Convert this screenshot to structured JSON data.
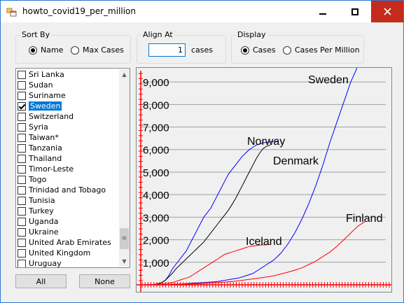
{
  "window": {
    "title": "howto_covid19_per_million",
    "icons": {
      "app": "app-icon",
      "minimize": "minimize-icon",
      "maximize": "maximize-icon",
      "close": "close-icon"
    }
  },
  "sort_by": {
    "label": "Sort By",
    "options": [
      {
        "label": "Name",
        "selected": true
      },
      {
        "label": "Max Cases",
        "selected": false
      }
    ]
  },
  "align_at": {
    "label": "Align At",
    "value": "1",
    "unit_label": "cases"
  },
  "display": {
    "label": "Display",
    "options": [
      {
        "label": "Cases",
        "selected": true
      },
      {
        "label": "Cases Per Million",
        "selected": false
      }
    ]
  },
  "countries": [
    {
      "label": "Sri Lanka",
      "checked": false
    },
    {
      "label": "Sudan",
      "checked": false
    },
    {
      "label": "Suriname",
      "checked": false
    },
    {
      "label": "Sweden",
      "checked": true,
      "selected": true
    },
    {
      "label": "Switzerland",
      "checked": false
    },
    {
      "label": "Syria",
      "checked": false
    },
    {
      "label": "Taiwan*",
      "checked": false
    },
    {
      "label": "Tanzania",
      "checked": false
    },
    {
      "label": "Thailand",
      "checked": false
    },
    {
      "label": "Timor-Leste",
      "checked": false
    },
    {
      "label": "Togo",
      "checked": false
    },
    {
      "label": "Trinidad and Tobago",
      "checked": false
    },
    {
      "label": "Tunisia",
      "checked": false
    },
    {
      "label": "Turkey",
      "checked": false
    },
    {
      "label": "Uganda",
      "checked": false
    },
    {
      "label": "Ukraine",
      "checked": false
    },
    {
      "label": "United Arab Emirates",
      "checked": false
    },
    {
      "label": "United Kingdom",
      "checked": false
    },
    {
      "label": "Uruguay",
      "checked": false
    }
  ],
  "buttons": {
    "all": "All",
    "none": "None"
  },
  "chart_data": {
    "type": "line",
    "title": "",
    "xlabel": "",
    "ylabel": "",
    "ylim": [
      0,
      9500
    ],
    "y_ticks": [
      "1,000",
      "2,000",
      "3,000",
      "4,000",
      "5,000",
      "6,000",
      "7,000",
      "8,000",
      "9,000"
    ],
    "y_tick_values": [
      1000,
      2000,
      3000,
      4000,
      5000,
      6000,
      7000,
      8000,
      9000
    ],
    "grid": true,
    "colors": {
      "axis": "#ff0000",
      "grid": "#a0a0a0",
      "background": "#f0f0f0"
    },
    "series": [
      {
        "name": "Norway",
        "color": "#0000ff",
        "x": [
          0,
          5,
          10,
          15,
          20,
          25,
          30,
          35,
          40,
          45,
          50,
          55,
          60,
          65,
          70,
          75,
          80,
          85,
          90,
          95,
          100,
          105,
          110,
          115,
          120,
          125,
          130,
          135,
          140,
          145,
          150,
          155,
          160,
          165,
          170,
          175,
          180,
          185,
          190,
          195
        ],
        "y": [
          0,
          0,
          5,
          10,
          20,
          40,
          100,
          200,
          400,
          700,
          900,
          1100,
          1300,
          1500,
          1800,
          2100,
          2400,
          2700,
          3000,
          3200,
          3400,
          3700,
          4000,
          4300,
          4600,
          4900,
          5100,
          5300,
          5500,
          5700,
          5850,
          6000,
          6100,
          6200,
          6250,
          6300,
          6320,
          6340,
          6360,
          6370
        ]
      },
      {
        "name": "Denmark",
        "color": "#000000",
        "x": [
          0,
          5,
          10,
          15,
          20,
          25,
          30,
          35,
          40,
          45,
          50,
          55,
          60,
          65,
          70,
          75,
          80,
          85,
          90,
          95,
          100,
          105,
          110,
          115,
          120,
          125,
          130,
          135,
          140,
          145,
          150,
          155,
          160,
          165,
          170,
          175,
          180,
          185
        ],
        "y": [
          0,
          0,
          5,
          10,
          20,
          50,
          100,
          200,
          350,
          500,
          700,
          850,
          1000,
          1150,
          1300,
          1450,
          1600,
          1750,
          1900,
          2100,
          2300,
          2500,
          2700,
          2900,
          3100,
          3300,
          3550,
          3800,
          4100,
          4400,
          4700,
          5000,
          5300,
          5600,
          5850,
          6050,
          6150,
          6200
        ]
      },
      {
        "name": "Iceland",
        "color": "#ff0000",
        "x": [
          0,
          5,
          10,
          15,
          20,
          25,
          30,
          35,
          40,
          45,
          50,
          55,
          60,
          65,
          70,
          75,
          80,
          85,
          90,
          95,
          100,
          105,
          110,
          115,
          120,
          125,
          130,
          135,
          140,
          145,
          150,
          155,
          160,
          165,
          170,
          175,
          180,
          185
        ],
        "y": [
          0,
          0,
          5,
          10,
          15,
          25,
          40,
          60,
          80,
          100,
          150,
          200,
          250,
          300,
          350,
          450,
          550,
          650,
          750,
          850,
          950,
          1050,
          1150,
          1250,
          1350,
          1400,
          1450,
          1500,
          1550,
          1600,
          1650,
          1700,
          1720,
          1740,
          1760,
          1770,
          1780,
          1790
        ]
      },
      {
        "name": "Sweden",
        "color": "#0000ff",
        "x": [
          0,
          10,
          20,
          30,
          40,
          50,
          60,
          70,
          80,
          90,
          100,
          110,
          120,
          130,
          140,
          150,
          160,
          170,
          180,
          190,
          200,
          210,
          220,
          230,
          240,
          250,
          260,
          270,
          280,
          290,
          300,
          310
        ],
        "y": [
          0,
          0,
          5,
          10,
          20,
          30,
          40,
          60,
          80,
          100,
          120,
          150,
          200,
          250,
          300,
          400,
          500,
          700,
          900,
          1100,
          1400,
          1800,
          2300,
          2900,
          3600,
          4400,
          5300,
          6300,
          7200,
          8100,
          9000,
          9700
        ]
      },
      {
        "name": "Finland",
        "color": "#ff0000",
        "x": [
          0,
          10,
          20,
          30,
          40,
          50,
          60,
          70,
          80,
          90,
          100,
          110,
          120,
          130,
          140,
          150,
          160,
          170,
          180,
          190,
          200,
          210,
          220,
          230,
          240,
          250,
          260,
          270,
          280,
          290,
          300,
          310,
          320
        ],
        "y": [
          0,
          0,
          5,
          10,
          15,
          20,
          30,
          40,
          50,
          60,
          80,
          100,
          120,
          150,
          180,
          220,
          260,
          300,
          350,
          400,
          480,
          560,
          650,
          750,
          900,
          1050,
          1250,
          1450,
          1700,
          2000,
          2300,
          2600,
          2800
        ]
      }
    ],
    "x_range": [
      0,
      350
    ]
  }
}
